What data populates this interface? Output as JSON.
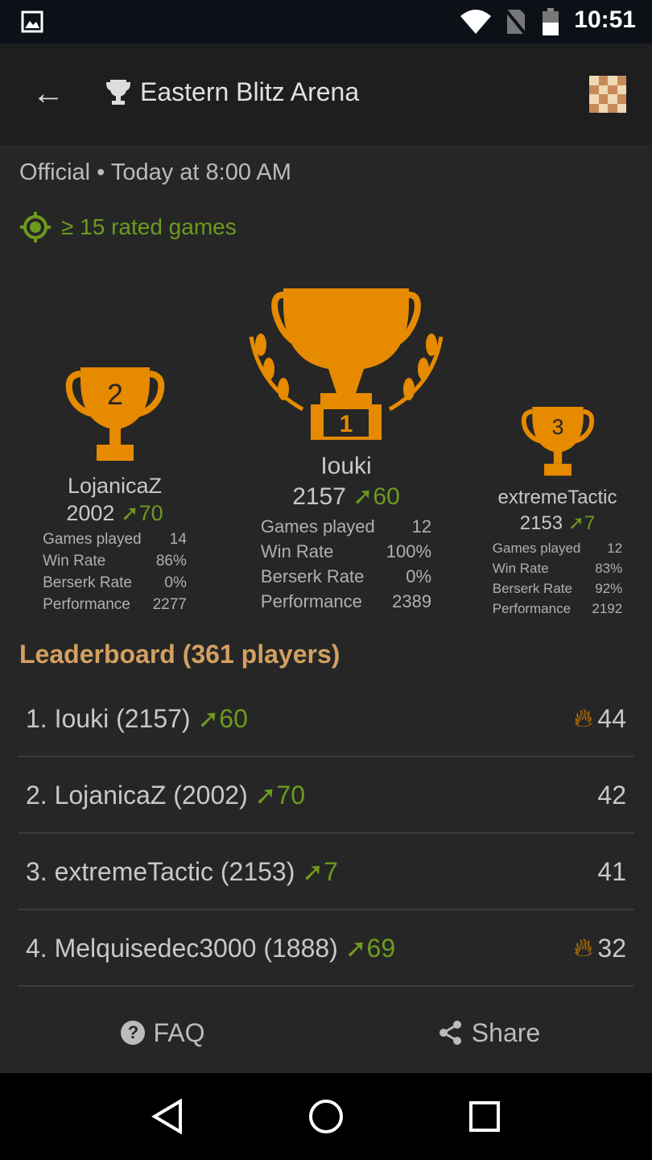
{
  "status": {
    "time": "10:51"
  },
  "appbar": {
    "title": "Eastern Blitz Arena"
  },
  "meta": "Official • Today at 8:00 AM",
  "condition": "≥ 15 rated games",
  "colors": {
    "accent": "#e68a00",
    "positive": "#6d9a1f",
    "heading": "#d2a060"
  },
  "podium": [
    {
      "rank": "1",
      "name": "Iouki",
      "rating": "2157",
      "diff": "60",
      "stats": [
        [
          "Games played",
          "12"
        ],
        [
          "Win Rate",
          "100%"
        ],
        [
          "Berserk Rate",
          "0%"
        ],
        [
          "Performance",
          "2389"
        ]
      ]
    },
    {
      "rank": "2",
      "name": "LojanicaZ",
      "rating": "2002",
      "diff": "70",
      "stats": [
        [
          "Games played",
          "14"
        ],
        [
          "Win Rate",
          "86%"
        ],
        [
          "Berserk Rate",
          "0%"
        ],
        [
          "Performance",
          "2277"
        ]
      ]
    },
    {
      "rank": "3",
      "name": "extremeTactic",
      "rating": "2153",
      "diff": "7",
      "stats": [
        [
          "Games played",
          "12"
        ],
        [
          "Win Rate",
          "83%"
        ],
        [
          "Berserk Rate",
          "92%"
        ],
        [
          "Performance",
          "2192"
        ]
      ]
    }
  ],
  "leaderboard": {
    "title": "Leaderboard (361 players)",
    "rows": [
      {
        "label": "1. Iouki (2157)",
        "diff": "60",
        "score": "44",
        "fire": true
      },
      {
        "label": "2. LojanicaZ (2002)",
        "diff": "70",
        "score": "42",
        "fire": false
      },
      {
        "label": "3. extremeTactic (2153)",
        "diff": "7",
        "score": "41",
        "fire": false
      },
      {
        "label": "4. Melquisedec3000 (1888)",
        "diff": "69",
        "score": "32",
        "fire": true
      }
    ]
  },
  "footer": {
    "faq": "FAQ",
    "share": "Share"
  }
}
